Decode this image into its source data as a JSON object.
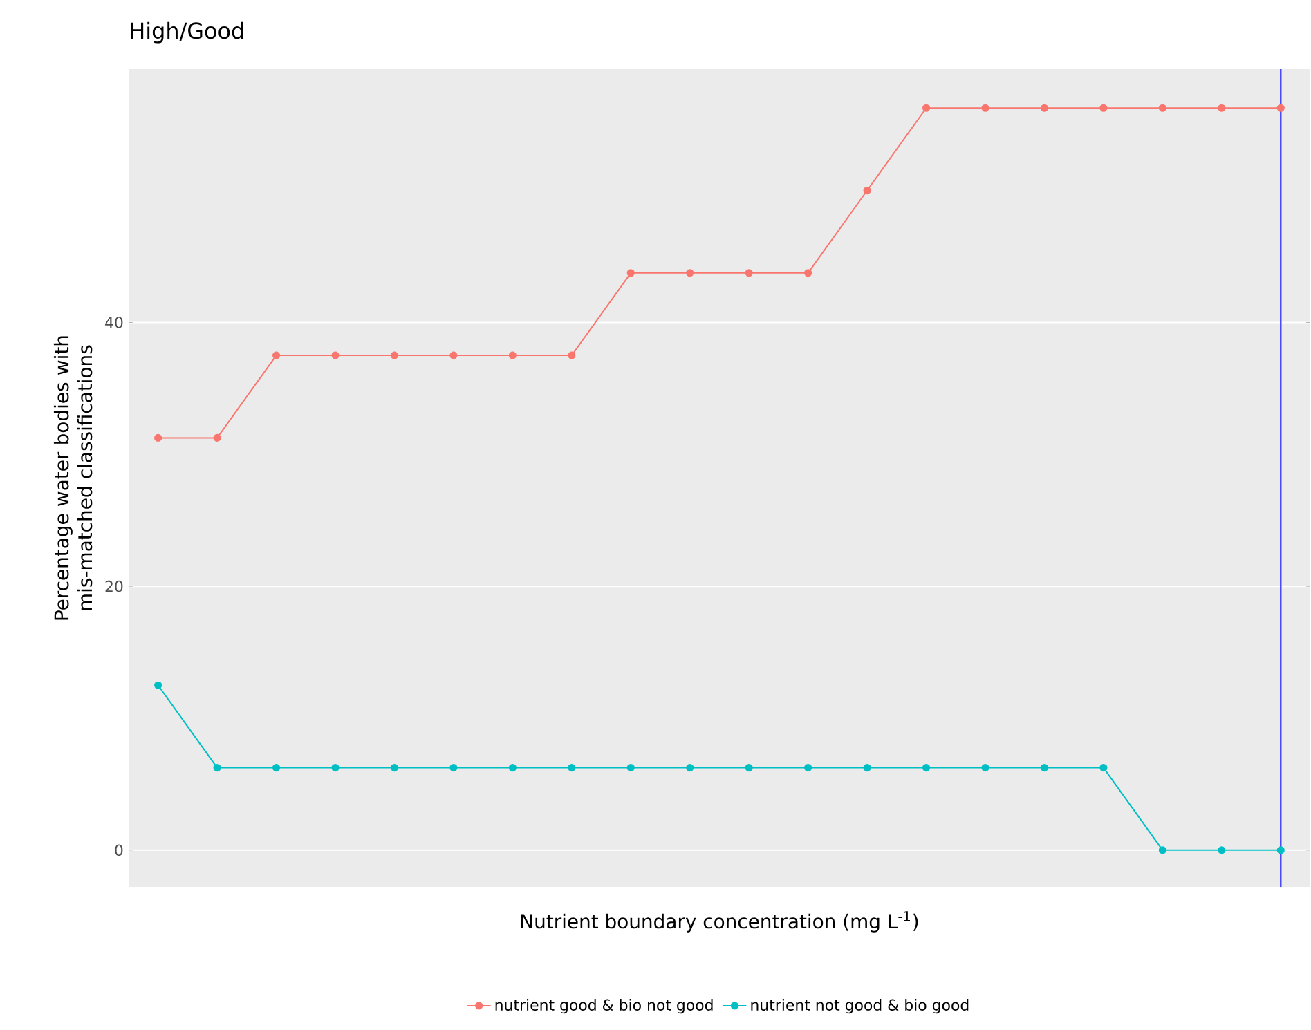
{
  "chart_data": {
    "type": "line",
    "title": "High/Good",
    "xlabel": "Nutrient boundary concentration (mg L$^{-1}$)",
    "ylabel": "Percentage water bodies with mis-matched classifications",
    "categories": [
      null,
      null,
      null,
      null,
      null,
      null,
      null,
      null,
      null,
      null,
      null,
      null,
      null,
      null,
      null,
      null,
      null,
      null,
      null,
      null
    ],
    "series": [
      {
        "name": "nutrient good & bio not good",
        "color": "#f8766d",
        "values": [
          31.25,
          31.25,
          37.5,
          37.5,
          37.5,
          37.5,
          37.5,
          37.5,
          43.75,
          43.75,
          43.75,
          43.75,
          50,
          56.25,
          56.25,
          56.25,
          56.25,
          56.25,
          56.25,
          56.25
        ]
      },
      {
        "name": "nutrient not good & bio good",
        "color": "#00bfc4",
        "values": [
          12.5,
          6.25,
          6.25,
          6.25,
          6.25,
          6.25,
          6.25,
          6.25,
          6.25,
          6.25,
          6.25,
          6.25,
          6.25,
          6.25,
          6.25,
          6.25,
          6.25,
          0,
          0,
          0
        ]
      }
    ],
    "ylim": [
      -2.8,
      59.2
    ],
    "yticks": [
      0,
      20,
      40
    ],
    "grid": "y",
    "legend": "bottom",
    "marker": "circle",
    "line_style": "solid",
    "tick_labels": "y"
  }
}
